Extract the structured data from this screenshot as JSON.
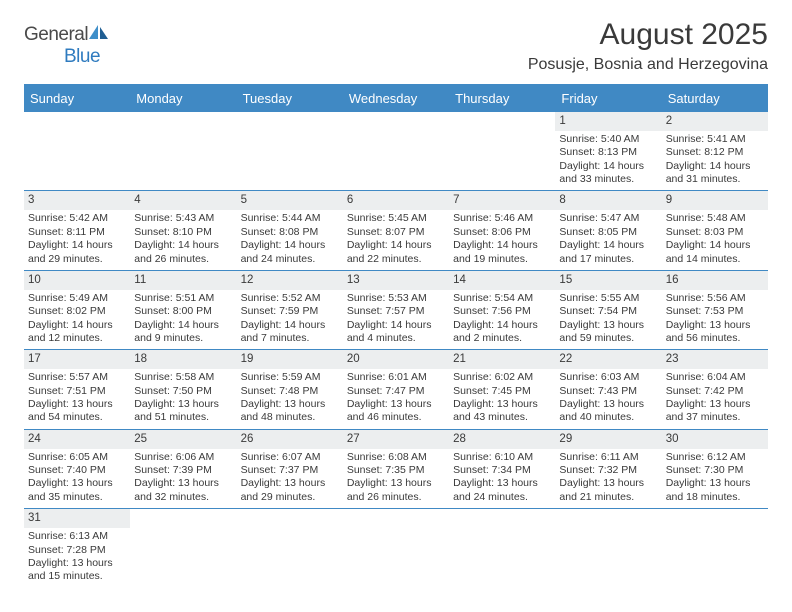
{
  "logo": {
    "textA": "General",
    "textB": "Blue"
  },
  "title": "August 2025",
  "location": "Posusje, Bosnia and Herzegovina",
  "colors": {
    "accent": "#4089c4",
    "daynum_bg": "#eceeef",
    "text": "#3a3a3a"
  },
  "dayNames": [
    "Sunday",
    "Monday",
    "Tuesday",
    "Wednesday",
    "Thursday",
    "Friday",
    "Saturday"
  ],
  "weeks": [
    [
      null,
      null,
      null,
      null,
      null,
      {
        "n": "1",
        "sr": "Sunrise: 5:40 AM",
        "ss": "Sunset: 8:13 PM",
        "dl": "Daylight: 14 hours and 33 minutes."
      },
      {
        "n": "2",
        "sr": "Sunrise: 5:41 AM",
        "ss": "Sunset: 8:12 PM",
        "dl": "Daylight: 14 hours and 31 minutes."
      }
    ],
    [
      {
        "n": "3",
        "sr": "Sunrise: 5:42 AM",
        "ss": "Sunset: 8:11 PM",
        "dl": "Daylight: 14 hours and 29 minutes."
      },
      {
        "n": "4",
        "sr": "Sunrise: 5:43 AM",
        "ss": "Sunset: 8:10 PM",
        "dl": "Daylight: 14 hours and 26 minutes."
      },
      {
        "n": "5",
        "sr": "Sunrise: 5:44 AM",
        "ss": "Sunset: 8:08 PM",
        "dl": "Daylight: 14 hours and 24 minutes."
      },
      {
        "n": "6",
        "sr": "Sunrise: 5:45 AM",
        "ss": "Sunset: 8:07 PM",
        "dl": "Daylight: 14 hours and 22 minutes."
      },
      {
        "n": "7",
        "sr": "Sunrise: 5:46 AM",
        "ss": "Sunset: 8:06 PM",
        "dl": "Daylight: 14 hours and 19 minutes."
      },
      {
        "n": "8",
        "sr": "Sunrise: 5:47 AM",
        "ss": "Sunset: 8:05 PM",
        "dl": "Daylight: 14 hours and 17 minutes."
      },
      {
        "n": "9",
        "sr": "Sunrise: 5:48 AM",
        "ss": "Sunset: 8:03 PM",
        "dl": "Daylight: 14 hours and 14 minutes."
      }
    ],
    [
      {
        "n": "10",
        "sr": "Sunrise: 5:49 AM",
        "ss": "Sunset: 8:02 PM",
        "dl": "Daylight: 14 hours and 12 minutes."
      },
      {
        "n": "11",
        "sr": "Sunrise: 5:51 AM",
        "ss": "Sunset: 8:00 PM",
        "dl": "Daylight: 14 hours and 9 minutes."
      },
      {
        "n": "12",
        "sr": "Sunrise: 5:52 AM",
        "ss": "Sunset: 7:59 PM",
        "dl": "Daylight: 14 hours and 7 minutes."
      },
      {
        "n": "13",
        "sr": "Sunrise: 5:53 AM",
        "ss": "Sunset: 7:57 PM",
        "dl": "Daylight: 14 hours and 4 minutes."
      },
      {
        "n": "14",
        "sr": "Sunrise: 5:54 AM",
        "ss": "Sunset: 7:56 PM",
        "dl": "Daylight: 14 hours and 2 minutes."
      },
      {
        "n": "15",
        "sr": "Sunrise: 5:55 AM",
        "ss": "Sunset: 7:54 PM",
        "dl": "Daylight: 13 hours and 59 minutes."
      },
      {
        "n": "16",
        "sr": "Sunrise: 5:56 AM",
        "ss": "Sunset: 7:53 PM",
        "dl": "Daylight: 13 hours and 56 minutes."
      }
    ],
    [
      {
        "n": "17",
        "sr": "Sunrise: 5:57 AM",
        "ss": "Sunset: 7:51 PM",
        "dl": "Daylight: 13 hours and 54 minutes."
      },
      {
        "n": "18",
        "sr": "Sunrise: 5:58 AM",
        "ss": "Sunset: 7:50 PM",
        "dl": "Daylight: 13 hours and 51 minutes."
      },
      {
        "n": "19",
        "sr": "Sunrise: 5:59 AM",
        "ss": "Sunset: 7:48 PM",
        "dl": "Daylight: 13 hours and 48 minutes."
      },
      {
        "n": "20",
        "sr": "Sunrise: 6:01 AM",
        "ss": "Sunset: 7:47 PM",
        "dl": "Daylight: 13 hours and 46 minutes."
      },
      {
        "n": "21",
        "sr": "Sunrise: 6:02 AM",
        "ss": "Sunset: 7:45 PM",
        "dl": "Daylight: 13 hours and 43 minutes."
      },
      {
        "n": "22",
        "sr": "Sunrise: 6:03 AM",
        "ss": "Sunset: 7:43 PM",
        "dl": "Daylight: 13 hours and 40 minutes."
      },
      {
        "n": "23",
        "sr": "Sunrise: 6:04 AM",
        "ss": "Sunset: 7:42 PM",
        "dl": "Daylight: 13 hours and 37 minutes."
      }
    ],
    [
      {
        "n": "24",
        "sr": "Sunrise: 6:05 AM",
        "ss": "Sunset: 7:40 PM",
        "dl": "Daylight: 13 hours and 35 minutes."
      },
      {
        "n": "25",
        "sr": "Sunrise: 6:06 AM",
        "ss": "Sunset: 7:39 PM",
        "dl": "Daylight: 13 hours and 32 minutes."
      },
      {
        "n": "26",
        "sr": "Sunrise: 6:07 AM",
        "ss": "Sunset: 7:37 PM",
        "dl": "Daylight: 13 hours and 29 minutes."
      },
      {
        "n": "27",
        "sr": "Sunrise: 6:08 AM",
        "ss": "Sunset: 7:35 PM",
        "dl": "Daylight: 13 hours and 26 minutes."
      },
      {
        "n": "28",
        "sr": "Sunrise: 6:10 AM",
        "ss": "Sunset: 7:34 PM",
        "dl": "Daylight: 13 hours and 24 minutes."
      },
      {
        "n": "29",
        "sr": "Sunrise: 6:11 AM",
        "ss": "Sunset: 7:32 PM",
        "dl": "Daylight: 13 hours and 21 minutes."
      },
      {
        "n": "30",
        "sr": "Sunrise: 6:12 AM",
        "ss": "Sunset: 7:30 PM",
        "dl": "Daylight: 13 hours and 18 minutes."
      }
    ],
    [
      {
        "n": "31",
        "sr": "Sunrise: 6:13 AM",
        "ss": "Sunset: 7:28 PM",
        "dl": "Daylight: 13 hours and 15 minutes."
      },
      null,
      null,
      null,
      null,
      null,
      null
    ]
  ]
}
